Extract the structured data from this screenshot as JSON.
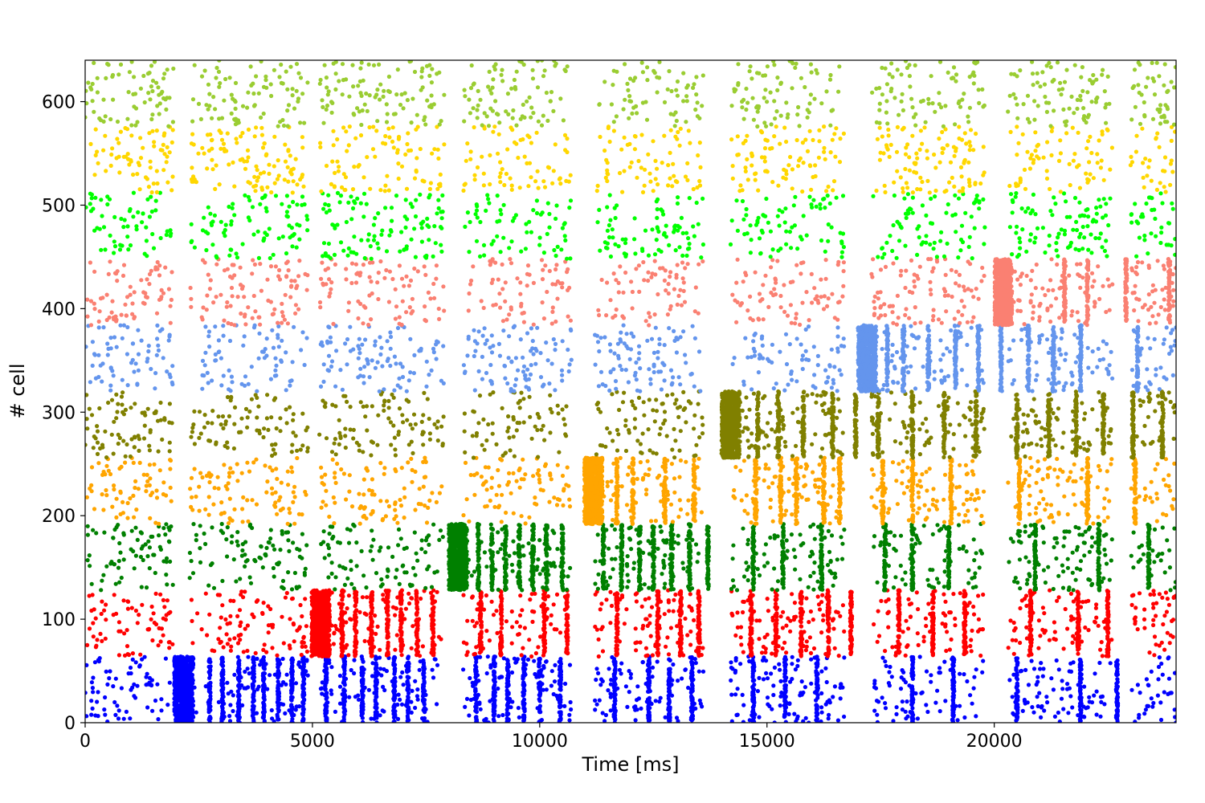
{
  "chart_data": {
    "type": "scatter",
    "title": "",
    "xlabel": "Time [ms]",
    "ylabel": "# cell",
    "xlim": [
      0,
      24000
    ],
    "ylim": [
      0,
      640
    ],
    "xticks": [
      0,
      5000,
      10000,
      15000,
      20000
    ],
    "yticks": [
      0,
      100,
      200,
      300,
      400,
      500,
      600
    ],
    "grid": false,
    "legend": "none",
    "gap_intervals": [
      [
        1950,
        2300
      ],
      [
        4900,
        5150
      ],
      [
        7900,
        8300
      ],
      [
        10700,
        11200
      ],
      [
        13600,
        14200
      ],
      [
        16700,
        17300
      ],
      [
        19800,
        20300
      ],
      [
        22600,
        23000
      ]
    ],
    "series": [
      {
        "color": "#0000ff",
        "cells": [
          0,
          64
        ],
        "bursts": [
          {
            "t": 2170,
            "dur": 420,
            "n": 700
          },
          {
            "t": 2740,
            "dur": 40,
            "n": 60
          },
          {
            "t": 3020,
            "dur": 40,
            "n": 60
          },
          {
            "t": 3380,
            "dur": 40,
            "n": 60
          },
          {
            "t": 3700,
            "dur": 40,
            "n": 60
          },
          {
            "t": 3930,
            "dur": 40,
            "n": 60
          },
          {
            "t": 4250,
            "dur": 40,
            "n": 60
          },
          {
            "t": 4550,
            "dur": 40,
            "n": 60
          },
          {
            "t": 4800,
            "dur": 40,
            "n": 60
          },
          {
            "t": 5300,
            "dur": 40,
            "n": 60
          },
          {
            "t": 5700,
            "dur": 40,
            "n": 60
          },
          {
            "t": 6100,
            "dur": 40,
            "n": 60
          },
          {
            "t": 6400,
            "dur": 40,
            "n": 60
          },
          {
            "t": 6800,
            "dur": 40,
            "n": 60
          },
          {
            "t": 7100,
            "dur": 40,
            "n": 60
          },
          {
            "t": 7450,
            "dur": 40,
            "n": 60
          },
          {
            "t": 8600,
            "dur": 40,
            "n": 60
          },
          {
            "t": 9000,
            "dur": 40,
            "n": 60
          },
          {
            "t": 9300,
            "dur": 40,
            "n": 60
          },
          {
            "t": 9650,
            "dur": 40,
            "n": 60
          },
          {
            "t": 10000,
            "dur": 40,
            "n": 60
          },
          {
            "t": 10450,
            "dur": 40,
            "n": 60
          },
          {
            "t": 11650,
            "dur": 40,
            "n": 60
          },
          {
            "t": 12400,
            "dur": 40,
            "n": 60
          },
          {
            "t": 12850,
            "dur": 40,
            "n": 60
          },
          {
            "t": 13350,
            "dur": 40,
            "n": 60
          },
          {
            "t": 14700,
            "dur": 40,
            "n": 60
          },
          {
            "t": 15400,
            "dur": 40,
            "n": 60
          },
          {
            "t": 16100,
            "dur": 40,
            "n": 60
          },
          {
            "t": 18200,
            "dur": 40,
            "n": 60
          },
          {
            "t": 19100,
            "dur": 40,
            "n": 60
          },
          {
            "t": 20500,
            "dur": 40,
            "n": 60
          },
          {
            "t": 21900,
            "dur": 40,
            "n": 60
          },
          {
            "t": 22700,
            "dur": 40,
            "n": 60
          }
        ]
      },
      {
        "color": "#ff0000",
        "cells": [
          64,
          128
        ],
        "bursts": [
          {
            "t": 5180,
            "dur": 400,
            "n": 650
          },
          {
            "t": 5650,
            "dur": 40,
            "n": 60
          },
          {
            "t": 5950,
            "dur": 40,
            "n": 60
          },
          {
            "t": 6300,
            "dur": 40,
            "n": 60
          },
          {
            "t": 6650,
            "dur": 40,
            "n": 60
          },
          {
            "t": 6950,
            "dur": 40,
            "n": 60
          },
          {
            "t": 7300,
            "dur": 40,
            "n": 60
          },
          {
            "t": 7650,
            "dur": 40,
            "n": 60
          },
          {
            "t": 8700,
            "dur": 40,
            "n": 60
          },
          {
            "t": 9150,
            "dur": 40,
            "n": 60
          },
          {
            "t": 10100,
            "dur": 40,
            "n": 60
          },
          {
            "t": 10600,
            "dur": 40,
            "n": 60
          },
          {
            "t": 11700,
            "dur": 40,
            "n": 60
          },
          {
            "t": 12600,
            "dur": 40,
            "n": 60
          },
          {
            "t": 13100,
            "dur": 40,
            "n": 60
          },
          {
            "t": 13500,
            "dur": 40,
            "n": 60
          },
          {
            "t": 14650,
            "dur": 40,
            "n": 60
          },
          {
            "t": 15200,
            "dur": 40,
            "n": 60
          },
          {
            "t": 15750,
            "dur": 40,
            "n": 60
          },
          {
            "t": 16350,
            "dur": 40,
            "n": 60
          },
          {
            "t": 16850,
            "dur": 40,
            "n": 60
          },
          {
            "t": 17900,
            "dur": 40,
            "n": 60
          },
          {
            "t": 18650,
            "dur": 40,
            "n": 60
          },
          {
            "t": 19350,
            "dur": 40,
            "n": 60
          },
          {
            "t": 20800,
            "dur": 40,
            "n": 60
          },
          {
            "t": 21850,
            "dur": 40,
            "n": 60
          },
          {
            "t": 22500,
            "dur": 40,
            "n": 60
          }
        ]
      },
      {
        "color": "#008000",
        "cells": [
          128,
          192
        ],
        "bursts": [
          {
            "t": 8200,
            "dur": 400,
            "n": 650
          },
          {
            "t": 8650,
            "dur": 40,
            "n": 60
          },
          {
            "t": 8950,
            "dur": 40,
            "n": 60
          },
          {
            "t": 9250,
            "dur": 40,
            "n": 60
          },
          {
            "t": 9550,
            "dur": 40,
            "n": 60
          },
          {
            "t": 9850,
            "dur": 40,
            "n": 60
          },
          {
            "t": 10150,
            "dur": 40,
            "n": 60
          },
          {
            "t": 10500,
            "dur": 40,
            "n": 60
          },
          {
            "t": 11400,
            "dur": 40,
            "n": 60
          },
          {
            "t": 11800,
            "dur": 40,
            "n": 60
          },
          {
            "t": 12200,
            "dur": 40,
            "n": 60
          },
          {
            "t": 12500,
            "dur": 40,
            "n": 60
          },
          {
            "t": 12900,
            "dur": 40,
            "n": 60
          },
          {
            "t": 13300,
            "dur": 40,
            "n": 60
          },
          {
            "t": 13700,
            "dur": 40,
            "n": 60
          },
          {
            "t": 14700,
            "dur": 40,
            "n": 60
          },
          {
            "t": 15350,
            "dur": 40,
            "n": 60
          },
          {
            "t": 16200,
            "dur": 40,
            "n": 60
          },
          {
            "t": 17600,
            "dur": 40,
            "n": 60
          },
          {
            "t": 18200,
            "dur": 40,
            "n": 60
          },
          {
            "t": 19000,
            "dur": 40,
            "n": 60
          },
          {
            "t": 20900,
            "dur": 40,
            "n": 60
          },
          {
            "t": 22300,
            "dur": 40,
            "n": 60
          },
          {
            "t": 23400,
            "dur": 40,
            "n": 60
          }
        ]
      },
      {
        "color": "#ffa500",
        "cells": [
          192,
          256
        ],
        "bursts": [
          {
            "t": 11180,
            "dur": 400,
            "n": 650
          },
          {
            "t": 11700,
            "dur": 40,
            "n": 60
          },
          {
            "t": 12050,
            "dur": 40,
            "n": 60
          },
          {
            "t": 12750,
            "dur": 40,
            "n": 60
          },
          {
            "t": 13400,
            "dur": 40,
            "n": 60
          },
          {
            "t": 14750,
            "dur": 40,
            "n": 60
          },
          {
            "t": 15300,
            "dur": 40,
            "n": 60
          },
          {
            "t": 15650,
            "dur": 40,
            "n": 60
          },
          {
            "t": 16250,
            "dur": 40,
            "n": 60
          },
          {
            "t": 16600,
            "dur": 40,
            "n": 60
          },
          {
            "t": 17550,
            "dur": 40,
            "n": 60
          },
          {
            "t": 18200,
            "dur": 40,
            "n": 60
          },
          {
            "t": 19050,
            "dur": 40,
            "n": 60
          },
          {
            "t": 20550,
            "dur": 40,
            "n": 60
          },
          {
            "t": 22050,
            "dur": 40,
            "n": 60
          },
          {
            "t": 23100,
            "dur": 40,
            "n": 60
          }
        ]
      },
      {
        "color": "#808000",
        "cells": [
          256,
          320
        ],
        "bursts": [
          {
            "t": 14200,
            "dur": 400,
            "n": 650
          },
          {
            "t": 14800,
            "dur": 40,
            "n": 60
          },
          {
            "t": 15250,
            "dur": 40,
            "n": 60
          },
          {
            "t": 15800,
            "dur": 40,
            "n": 60
          },
          {
            "t": 16450,
            "dur": 40,
            "n": 60
          },
          {
            "t": 16950,
            "dur": 40,
            "n": 60
          },
          {
            "t": 17450,
            "dur": 40,
            "n": 60
          },
          {
            "t": 18200,
            "dur": 40,
            "n": 60
          },
          {
            "t": 18900,
            "dur": 40,
            "n": 60
          },
          {
            "t": 19600,
            "dur": 40,
            "n": 60
          },
          {
            "t": 20500,
            "dur": 40,
            "n": 60
          },
          {
            "t": 21200,
            "dur": 40,
            "n": 60
          },
          {
            "t": 21800,
            "dur": 40,
            "n": 60
          },
          {
            "t": 22400,
            "dur": 40,
            "n": 60
          },
          {
            "t": 23050,
            "dur": 40,
            "n": 60
          },
          {
            "t": 23700,
            "dur": 40,
            "n": 60
          }
        ]
      },
      {
        "color": "#6495ed",
        "cells": [
          320,
          384
        ],
        "bursts": [
          {
            "t": 17200,
            "dur": 400,
            "n": 650
          },
          {
            "t": 17650,
            "dur": 40,
            "n": 60
          },
          {
            "t": 18000,
            "dur": 40,
            "n": 60
          },
          {
            "t": 18550,
            "dur": 40,
            "n": 60
          },
          {
            "t": 19150,
            "dur": 40,
            "n": 60
          },
          {
            "t": 19650,
            "dur": 40,
            "n": 60
          },
          {
            "t": 20150,
            "dur": 40,
            "n": 60
          },
          {
            "t": 20750,
            "dur": 40,
            "n": 60
          },
          {
            "t": 21300,
            "dur": 40,
            "n": 60
          },
          {
            "t": 21900,
            "dur": 40,
            "n": 60
          },
          {
            "t": 23150,
            "dur": 40,
            "n": 60
          }
        ]
      },
      {
        "color": "#fa8072",
        "cells": [
          384,
          448
        ],
        "bursts": [
          {
            "t": 20200,
            "dur": 380,
            "n": 600
          },
          {
            "t": 21550,
            "dur": 40,
            "n": 60
          },
          {
            "t": 22050,
            "dur": 40,
            "n": 60
          },
          {
            "t": 22900,
            "dur": 40,
            "n": 60
          },
          {
            "t": 23850,
            "dur": 40,
            "n": 60
          }
        ]
      },
      {
        "color": "#00ff00",
        "cells": [
          448,
          512
        ],
        "bursts": []
      },
      {
        "color": "#ffd700",
        "cells": [
          512,
          576
        ],
        "bursts": []
      },
      {
        "color": "#9acd32",
        "cells": [
          576,
          640
        ],
        "bursts": []
      }
    ]
  }
}
